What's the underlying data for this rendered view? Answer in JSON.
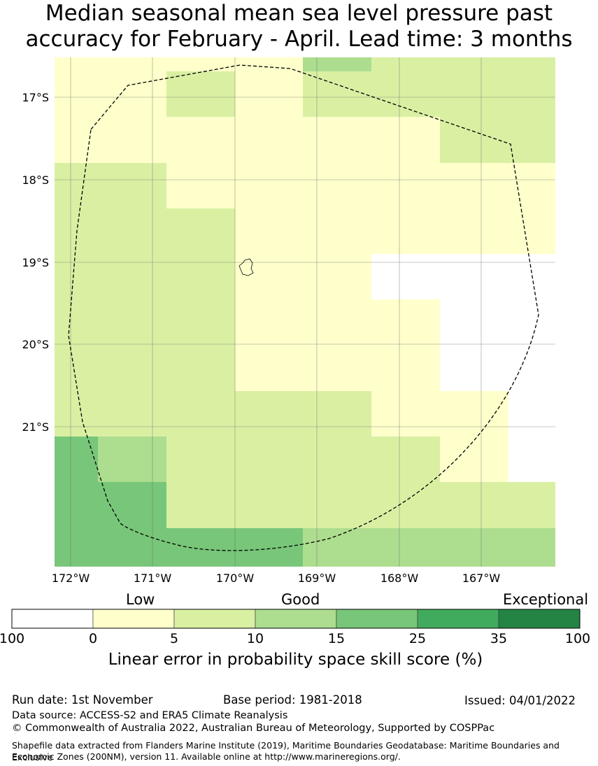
{
  "title": {
    "line1": "Median seasonal mean sea level pressure past",
    "line2": "accuracy for February - April. Lead time: 3 months"
  },
  "map": {
    "lat_labels": [
      "17°S",
      "18°S",
      "19°S",
      "20°S",
      "21°S"
    ],
    "lon_labels": [
      "172°W",
      "171°W",
      "170°W",
      "169°W",
      "168°W",
      "167°W"
    ]
  },
  "legend": {
    "categories": [
      "Low",
      "Good",
      "Exceptional"
    ],
    "ticks": [
      "100",
      "0",
      "5",
      "10",
      "15",
      "25",
      "35",
      "100"
    ],
    "colors": [
      "#ffffff",
      "#ffffcc",
      "#d9f0a3",
      "#addd8e",
      "#78c679",
      "#41ab5d",
      "#238443"
    ],
    "axis_label": "Linear error in probability space skill score (%)"
  },
  "footer": {
    "run_date": "Run date: 1st November",
    "base_period": "Base period: 1981-2018",
    "issued": "Issued: 04/01/2022",
    "data_source": "Data source: ACCESS-S2 and ERA5 Climate Reanalysis",
    "copyright": "© Commonwealth of Australia 2022, Australian Bureau of Meteorology, Supported by COSPPac",
    "shapefile_line1": "Shapefile data extracted from Flanders Marine Institute (2019), Maritime Boundaries Geodatabase: Maritime Boundaries and Exclusive",
    "shapefile_line2": "Economic Zones (200NM), version 11. Available online at http://www.marineregions.org/."
  }
}
